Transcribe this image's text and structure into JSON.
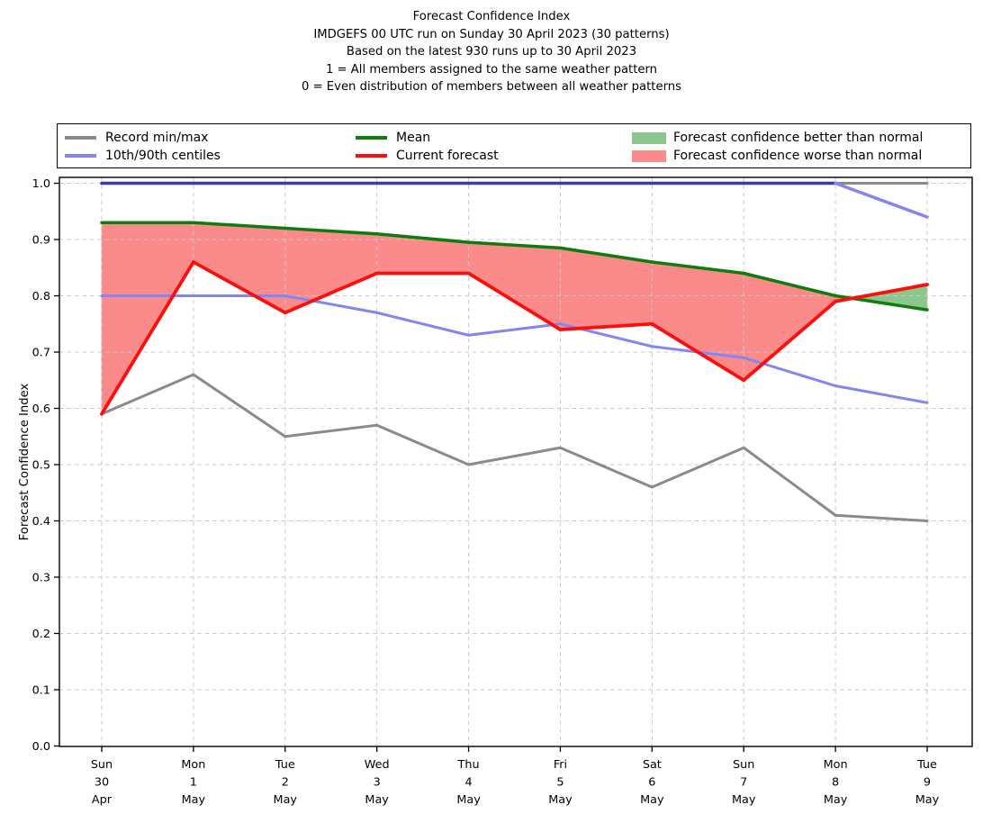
{
  "title": {
    "lines": [
      "Forecast Confidence Index",
      "IMDGEFS 00 UTC run on Sunday 30 April 2023 (30 patterns)",
      "Based on the latest 930 runs up to 30 April 2023",
      "1 = All members assigned to the same weather pattern",
      "0 = Even distribution of members between all weather patterns"
    ]
  },
  "legend": {
    "items": [
      {
        "label": "Record min/max",
        "swatch": "line",
        "color": "#8a8a8a"
      },
      {
        "label": "10th/90th centiles",
        "swatch": "line",
        "color": "#8585f0"
      },
      {
        "label": "Mean",
        "swatch": "line",
        "color": "#0e7d0e"
      },
      {
        "label": "Current forecast",
        "swatch": "line",
        "color": "#fb0f0c"
      },
      {
        "label": "Forecast confidence better than normal",
        "swatch": "patch",
        "color": "#8cc68c"
      },
      {
        "label": "Forecast confidence worse than normal",
        "swatch": "patch",
        "color": "#fb8b8b"
      }
    ]
  },
  "chart_data": {
    "type": "line",
    "title": "Forecast Confidence Index",
    "xlabel": "",
    "ylabel": "Forecast Confidence Index",
    "ylim": [
      0.0,
      1.0
    ],
    "ytick_step": 0.1,
    "grid": true,
    "legend_position": "top",
    "categories": [
      "Sun 30 Apr",
      "Mon 1 May",
      "Tue 2 May",
      "Wed 3 May",
      "Thu 4 May",
      "Fri 5 May",
      "Sat 6 May",
      "Sun 7 May",
      "Mon 8 May",
      "Tue 9 May"
    ],
    "x_tick_labels": [
      [
        "Sun",
        "30",
        "Apr"
      ],
      [
        "Mon",
        "1",
        "May"
      ],
      [
        "Tue",
        "2",
        "May"
      ],
      [
        "Wed",
        "3",
        "May"
      ],
      [
        "Thu",
        "4",
        "May"
      ],
      [
        "Fri",
        "5",
        "May"
      ],
      [
        "Sat",
        "6",
        "May"
      ],
      [
        "Sun",
        "7",
        "May"
      ],
      [
        "Mon",
        "8",
        "May"
      ],
      [
        "Tue",
        "9",
        "May"
      ]
    ],
    "series": [
      {
        "id": "record-max",
        "name": "Record max",
        "color": "#8a8a8a",
        "width": 3,
        "values": [
          1.0,
          1.0,
          1.0,
          1.0,
          1.0,
          1.0,
          1.0,
          1.0,
          1.0,
          1.0
        ]
      },
      {
        "id": "record-min",
        "name": "Record min",
        "color": "#8a8a8a",
        "width": 3,
        "values": [
          0.59,
          0.66,
          0.55,
          0.57,
          0.5,
          0.53,
          0.46,
          0.53,
          0.41,
          0.4
        ]
      },
      {
        "id": "centile-10",
        "name": "10th centile",
        "color": "#8585f0",
        "width": 3,
        "values": [
          0.8,
          0.8,
          0.8,
          0.77,
          0.73,
          0.75,
          0.71,
          0.69,
          0.64,
          0.61
        ]
      },
      {
        "id": "centile-90",
        "name": "90th centile",
        "color": "#8585f0",
        "overlap_color": "#3b3bab",
        "width": 3.5,
        "values": [
          1.0,
          1.0,
          1.0,
          1.0,
          1.0,
          1.0,
          1.0,
          1.0,
          1.0,
          0.94
        ]
      },
      {
        "id": "mean",
        "name": "Mean",
        "color": "#0e7d0e",
        "width": 3.5,
        "values": [
          0.93,
          0.93,
          0.92,
          0.91,
          0.895,
          0.885,
          0.86,
          0.84,
          0.8,
          0.775
        ]
      },
      {
        "id": "current-forecast",
        "name": "Current forecast",
        "color": "#fb0f0c",
        "width": 3.8,
        "values": [
          0.59,
          0.86,
          0.77,
          0.84,
          0.84,
          0.74,
          0.75,
          0.65,
          0.79,
          0.82
        ]
      }
    ],
    "fill_between": {
      "upper": "mean",
      "lower": "current-forecast",
      "worse_color": "#fb8b8b",
      "better_color": "#8cc68c",
      "note": "red where forecast below mean, green where forecast above mean"
    }
  }
}
